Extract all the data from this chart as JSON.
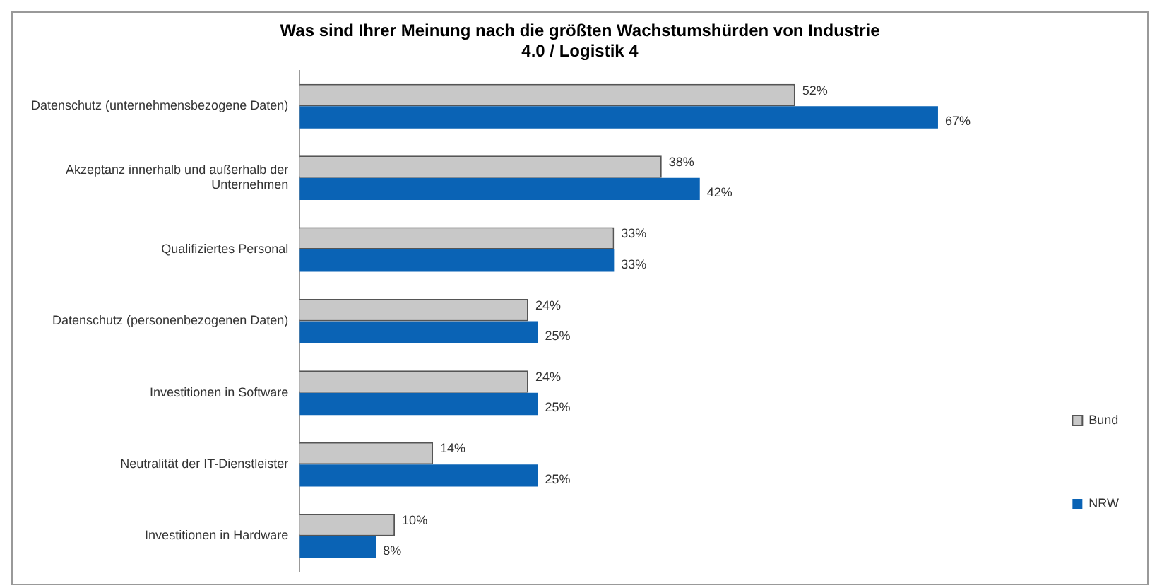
{
  "chart_data": {
    "type": "bar",
    "orientation": "horizontal",
    "title": "Was sind Ihrer Meinung nach die größten Wachstumshürden von Industrie 4.0 / Logistik 4",
    "categories": [
      "Datenschutz (unternehmensbezogene Daten)",
      "Akzeptanz innerhalb und außerhalb der Unternehmen",
      "Qualifiziertes Personal",
      "Datenschutz (personenbezogenen Daten)",
      "Investitionen in Software",
      "Neutralität der IT-Dienstleister",
      "Investitionen in Hardware"
    ],
    "series": [
      {
        "name": "Bund",
        "color": "#c8c8c8",
        "values": [
          52,
          38,
          33,
          24,
          24,
          14,
          10
        ],
        "value_labels": [
          "52%",
          "38%",
          "33%",
          "24%",
          "24%",
          "14%",
          "10%"
        ]
      },
      {
        "name": "NRW",
        "color": "#0a63b5",
        "values": [
          67,
          42,
          33,
          25,
          25,
          25,
          8
        ],
        "value_labels": [
          "67%",
          "42%",
          "33%",
          "25%",
          "25%",
          "25%",
          "8%"
        ]
      }
    ],
    "legend": "bottom right",
    "grid": false
  }
}
